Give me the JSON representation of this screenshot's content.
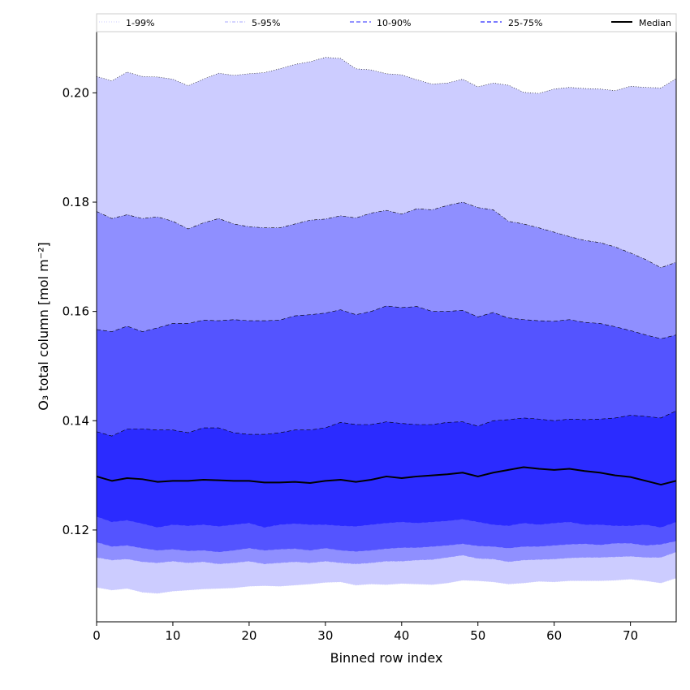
{
  "chart_data": {
    "type": "area",
    "xlabel": "Binned row index",
    "ylabel": "O₃ total column [mol m⁻²]",
    "xlim": [
      0,
      76
    ],
    "ylim": [
      0.1032,
      0.2112
    ],
    "xticks": [
      0,
      10,
      20,
      30,
      40,
      50,
      60,
      70
    ],
    "xtick_labels": [
      "0",
      "10",
      "20",
      "30",
      "40",
      "50",
      "60",
      "70"
    ],
    "yticks": [
      0.12,
      0.14,
      0.16,
      0.18,
      0.2
    ],
    "ytick_labels": [
      "0.12",
      "0.14",
      "0.16",
      "0.18",
      "0.20"
    ],
    "grid": false,
    "legend_position": "top",
    "x_anchor": [
      0,
      2,
      4,
      6,
      8,
      10,
      12,
      14,
      16,
      18,
      20,
      22,
      24,
      26,
      28,
      30,
      32,
      34,
      36,
      38,
      40,
      42,
      44,
      46,
      48,
      50,
      52,
      54,
      56,
      58,
      60,
      62,
      64,
      66,
      68,
      70,
      72,
      74,
      76
    ],
    "series": [
      {
        "name": "1-99%",
        "color": "#ccccff",
        "linestyle": "dotted",
        "lower": [
          0.1095,
          0.109,
          0.1093,
          0.1086,
          0.1084,
          0.1088,
          0.109,
          0.1092,
          0.1093,
          0.1094,
          0.1097,
          0.1098,
          0.1097,
          0.1099,
          0.1101,
          0.1104,
          0.1105,
          0.1099,
          0.1101,
          0.11,
          0.1102,
          0.1101,
          0.11,
          0.1103,
          0.1108,
          0.1107,
          0.1105,
          0.1101,
          0.1103,
          0.1106,
          0.1105,
          0.1107,
          0.1107,
          0.1107,
          0.1108,
          0.111,
          0.1107,
          0.1103,
          0.1112
        ],
        "upper": [
          0.203,
          0.2022,
          0.2038,
          0.203,
          0.2029,
          0.2025,
          0.2013,
          0.2025,
          0.2036,
          0.2032,
          0.2035,
          0.2037,
          0.2044,
          0.2052,
          0.2057,
          0.2065,
          0.2063,
          0.2044,
          0.2042,
          0.2035,
          0.2033,
          0.2024,
          0.2016,
          0.2018,
          0.2025,
          0.2011,
          0.2018,
          0.2014,
          0.2001,
          0.1999,
          0.2007,
          0.201,
          0.2008,
          0.2007,
          0.2004,
          0.2012,
          0.201,
          0.2009,
          0.2026
        ]
      },
      {
        "name": "5-95%",
        "color": "#8f8fff",
        "linestyle": "dashdot",
        "lower": [
          0.115,
          0.1145,
          0.1147,
          0.1142,
          0.114,
          0.1143,
          0.114,
          0.1142,
          0.1138,
          0.114,
          0.1143,
          0.1138,
          0.114,
          0.1142,
          0.114,
          0.1143,
          0.114,
          0.1138,
          0.114,
          0.1143,
          0.1143,
          0.1145,
          0.1146,
          0.115,
          0.1154,
          0.1148,
          0.1147,
          0.1142,
          0.1145,
          0.1146,
          0.1147,
          0.1149,
          0.115,
          0.115,
          0.1151,
          0.1152,
          0.115,
          0.115,
          0.116
        ],
        "upper": [
          0.1783,
          0.177,
          0.1777,
          0.177,
          0.1773,
          0.1765,
          0.1751,
          0.1762,
          0.177,
          0.176,
          0.1755,
          0.1753,
          0.1753,
          0.176,
          0.1767,
          0.1769,
          0.1775,
          0.1771,
          0.178,
          0.1785,
          0.1778,
          0.1788,
          0.1786,
          0.1794,
          0.18,
          0.179,
          0.1786,
          0.1765,
          0.176,
          0.1753,
          0.1745,
          0.1737,
          0.173,
          0.1726,
          0.1718,
          0.1707,
          0.1695,
          0.168,
          0.169
        ]
      },
      {
        "name": "10-90%",
        "color": "#5454ff",
        "linestyle": "dashed",
        "lower": [
          0.1178,
          0.117,
          0.1172,
          0.1167,
          0.1163,
          0.1165,
          0.1162,
          0.1163,
          0.116,
          0.1163,
          0.1167,
          0.1163,
          0.1165,
          0.1166,
          0.1163,
          0.1167,
          0.1163,
          0.1161,
          0.1163,
          0.1166,
          0.1168,
          0.1168,
          0.117,
          0.1172,
          0.1175,
          0.1171,
          0.117,
          0.1167,
          0.117,
          0.117,
          0.1172,
          0.1174,
          0.1175,
          0.1173,
          0.1176,
          0.1176,
          0.1172,
          0.1174,
          0.118
        ],
        "upper": [
          0.1567,
          0.1563,
          0.1573,
          0.1563,
          0.157,
          0.1578,
          0.1578,
          0.1584,
          0.1583,
          0.1585,
          0.1583,
          0.1583,
          0.1584,
          0.1592,
          0.1594,
          0.1597,
          0.1603,
          0.1594,
          0.16,
          0.161,
          0.1607,
          0.1609,
          0.16,
          0.16,
          0.1602,
          0.159,
          0.1598,
          0.1588,
          0.1585,
          0.1583,
          0.1582,
          0.1585,
          0.158,
          0.1578,
          0.1572,
          0.1565,
          0.1557,
          0.155,
          0.1557
        ]
      },
      {
        "name": "25-75%",
        "color": "#2b2bff",
        "linestyle": "dashed",
        "lower": [
          0.1225,
          0.1215,
          0.1218,
          0.1212,
          0.1205,
          0.121,
          0.1208,
          0.121,
          0.1207,
          0.121,
          0.1213,
          0.1205,
          0.121,
          0.1212,
          0.121,
          0.121,
          0.1208,
          0.1207,
          0.121,
          0.1213,
          0.1215,
          0.1213,
          0.1215,
          0.1217,
          0.122,
          0.1215,
          0.121,
          0.1208,
          0.1213,
          0.121,
          0.1213,
          0.1215,
          0.121,
          0.121,
          0.1208,
          0.1208,
          0.121,
          0.1205,
          0.1215
        ],
        "upper": [
          0.138,
          0.1372,
          0.1385,
          0.1385,
          0.1383,
          0.1383,
          0.1378,
          0.1387,
          0.1387,
          0.1378,
          0.1375,
          0.1375,
          0.1378,
          0.1383,
          0.1383,
          0.1387,
          0.1397,
          0.1393,
          0.1393,
          0.1398,
          0.1395,
          0.1393,
          0.1393,
          0.1397,
          0.1398,
          0.139,
          0.14,
          0.1402,
          0.1405,
          0.1403,
          0.14,
          0.1403,
          0.1402,
          0.1403,
          0.1405,
          0.141,
          0.1408,
          0.1405,
          0.1418
        ]
      },
      {
        "name": "Median",
        "color": "#000000",
        "linestyle": "solid",
        "values": [
          0.1298,
          0.129,
          0.1295,
          0.1293,
          0.1288,
          0.129,
          0.129,
          0.1292,
          0.1291,
          0.129,
          0.129,
          0.1287,
          0.1287,
          0.1288,
          0.1286,
          0.129,
          0.1292,
          0.1288,
          0.1292,
          0.1298,
          0.1295,
          0.1298,
          0.13,
          0.1302,
          0.1305,
          0.1298,
          0.1305,
          0.131,
          0.1315,
          0.1312,
          0.131,
          0.1312,
          0.1308,
          0.1305,
          0.13,
          0.1297,
          0.129,
          0.1283,
          0.129
        ]
      }
    ]
  }
}
